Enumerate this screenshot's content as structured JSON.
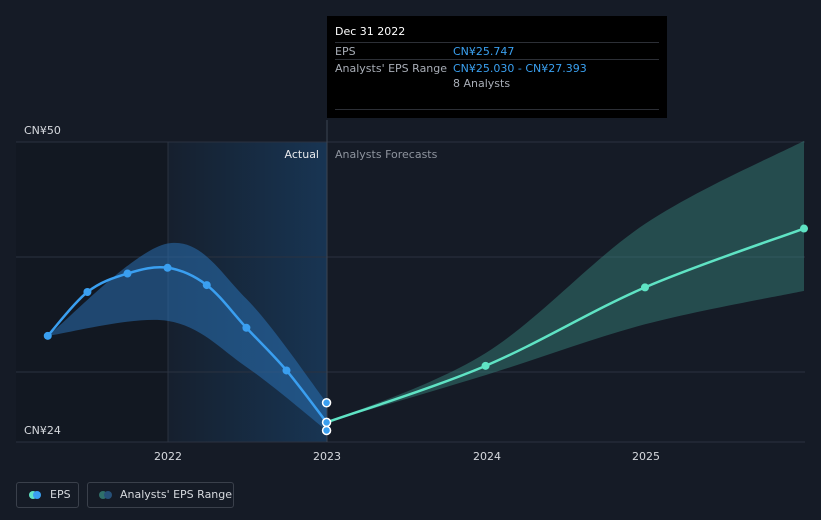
{
  "chart_data": {
    "type": "line",
    "y_axis": {
      "top_label": "CN¥50",
      "bottom_label": "CN¥24",
      "ylim": [
        24,
        50
      ]
    },
    "x_ticks": [
      "2022",
      "2023",
      "2024",
      "2025"
    ],
    "sections": {
      "actual": "Actual",
      "forecast": "Analysts Forecasts"
    },
    "series": [
      {
        "name": "EPS",
        "color": "#3a9ff0",
        "x": [
          "2021-03-31",
          "2021-06-30",
          "2021-09-30",
          "2021-12-31",
          "2022-03-31",
          "2022-06-30",
          "2022-09-30",
          "2022-12-31"
        ],
        "y": [
          33.2,
          37.0,
          38.6,
          39.1,
          37.6,
          33.9,
          30.2,
          25.7
        ]
      },
      {
        "name": "EPS Forecast",
        "color": "#5fe3c4",
        "x": [
          "2022-12-31",
          "2023-12-31",
          "2024-12-31",
          "2025-12-31"
        ],
        "y": [
          25.7,
          30.6,
          37.4,
          42.5
        ]
      }
    ],
    "range_past": {
      "x": [
        "2021-03-31",
        "2021-12-31",
        "2022-06-30",
        "2022-12-31"
      ],
      "low": [
        33.2,
        34.5,
        30.5,
        25.0
      ],
      "high": [
        33.2,
        41.2,
        36.4,
        27.4
      ]
    },
    "range_forecast": {
      "x": [
        "2022-12-31",
        "2023-12-31",
        "2024-12-31",
        "2025-12-31"
      ],
      "low": [
        25.7,
        29.8,
        34.2,
        37.1
      ],
      "high": [
        25.7,
        31.7,
        42.9,
        50.1
      ]
    }
  },
  "tooltip": {
    "date": "Dec 31 2022",
    "eps_label": "EPS",
    "eps_value": "CN¥25.747",
    "range_label": "Analysts' EPS Range",
    "range_value": "CN¥25.030 - CN¥27.393",
    "analysts": "8 Analysts"
  },
  "legend": {
    "eps": "EPS",
    "range": "Analysts' EPS Range"
  },
  "colors": {
    "eps": "#3a9ff0",
    "forecast": "#5fe3c4",
    "range": "#2f6f6a",
    "background": "#151b26"
  }
}
